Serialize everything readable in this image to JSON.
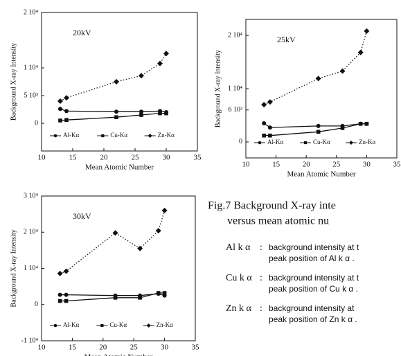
{
  "chart_data": [
    {
      "type": "line",
      "annotation": "20kV",
      "ylabel": "Background X-ray Intensity",
      "xlabel": "Mean Atomic Number",
      "x": [
        13,
        14,
        22,
        26,
        29,
        30
      ],
      "series": [
        {
          "name": "Al-Kα",
          "color": "#111111",
          "values": [
            2600,
            2200,
            2100,
            2100,
            2200,
            2000
          ]
        },
        {
          "name": "Cu-Kα",
          "color": "#111111",
          "values": [
            500,
            600,
            1100,
            1500,
            1800,
            1800
          ]
        },
        {
          "name": "Zn-Kα",
          "color": "#111111",
          "values": [
            4000,
            4600,
            7500,
            8600,
            10800,
            12600
          ]
        }
      ],
      "xlim": [
        10,
        35
      ],
      "xticks": [
        10,
        15,
        20,
        25,
        30,
        35
      ],
      "ylim": [
        -5000,
        20000
      ],
      "yticks": [
        {
          "value": 20000,
          "label": "2 10⁴"
        },
        {
          "value": 10000,
          "label": "1 10⁴"
        },
        {
          "value": 5000,
          "label": "5 10³"
        },
        0
      ]
    },
    {
      "type": "line",
      "annotation": "25kV",
      "ylabel": "Background X-ray Intensity",
      "xlabel": "Mean Atomic Number",
      "x": [
        13,
        14,
        22,
        26,
        29,
        30
      ],
      "series": [
        {
          "name": "Al-Kα",
          "color": "#111111",
          "values": [
            3500,
            2700,
            3000,
            3000,
            3400,
            3400
          ]
        },
        {
          "name": "Cu-Kα",
          "color": "#111111",
          "values": [
            1200,
            1200,
            1900,
            2600,
            3400,
            3400
          ]
        },
        {
          "name": "Zn-Kα",
          "color": "#111111",
          "values": [
            7000,
            7500,
            11900,
            13300,
            16800,
            20800
          ]
        }
      ],
      "xlim": [
        10,
        35
      ],
      "xticks": [
        10,
        15,
        20,
        25,
        30,
        35
      ],
      "ylim": [
        -3000,
        23000
      ],
      "yticks": [
        {
          "value": 20000,
          "label": "2 10⁴"
        },
        {
          "value": 10000,
          "label": "1 10⁴"
        },
        {
          "value": 6000,
          "label": "6 10³"
        },
        0
      ]
    },
    {
      "type": "line",
      "annotation": "30kV",
      "ylabel": "Background X-ray Intensity",
      "xlabel": "Mean Atomic Number",
      "x": [
        13,
        14,
        22,
        26,
        29,
        30
      ],
      "series": [
        {
          "name": "Al-Kα",
          "color": "#111111",
          "values": [
            2700,
            2700,
            2500,
            2500,
            3000,
            2500
          ]
        },
        {
          "name": "Cu-Kα",
          "color": "#111111",
          "values": [
            1000,
            1000,
            1900,
            1900,
            3200,
            3200
          ]
        },
        {
          "name": "Zn-Kα",
          "color": "#111111",
          "values": [
            8600,
            9200,
            19800,
            15500,
            20400,
            26000
          ]
        }
      ],
      "xlim": [
        10,
        35
      ],
      "xticks": [
        10,
        15,
        20,
        25,
        30,
        35
      ],
      "ylim": [
        -10000,
        30000
      ],
      "yticks": [
        {
          "value": 30000,
          "label": "3 10⁴"
        },
        {
          "value": 20000,
          "label": "2 10⁴"
        },
        {
          "value": 10000,
          "label": "1 10⁴"
        },
        0,
        {
          "value": -10000,
          "label": "-1 10⁴"
        }
      ]
    }
  ],
  "caption": {
    "title": [
      "Fig.7 Background X-ray inte",
      "versus mean atomic nu"
    ],
    "items": [
      {
        "label": "Al k α",
        "text": [
          "background intensity at t",
          "peak position of Al k α ."
        ]
      },
      {
        "label": "Cu k α",
        "text": [
          "background intensity at t",
          "peak position of Cu k α ."
        ]
      },
      {
        "label": "Zn k α",
        "text": [
          "background intensity at",
          "peak position of Zn k α ."
        ]
      }
    ]
  }
}
